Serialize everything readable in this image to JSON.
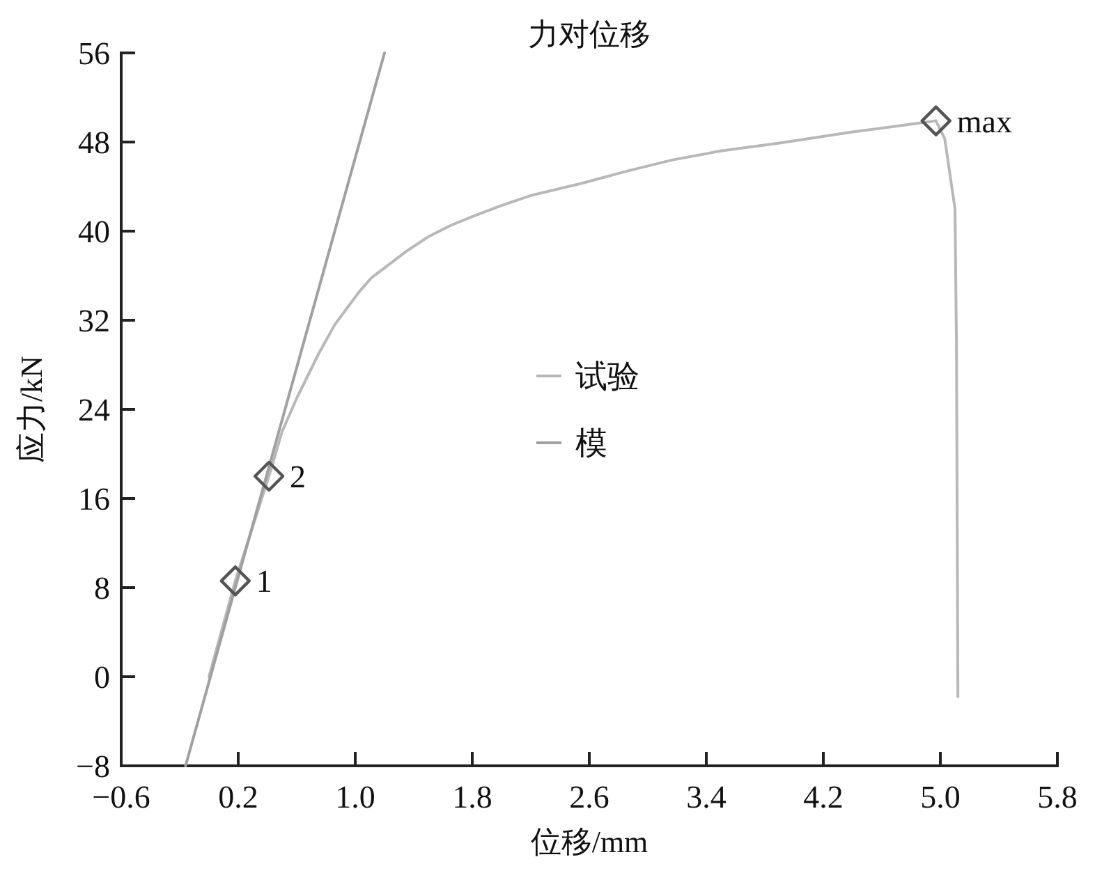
{
  "chart_data": {
    "type": "line",
    "title": "力对位移",
    "xlabel": "位移/mm",
    "ylabel": "应力/kN",
    "xlim": [
      -0.6,
      5.8
    ],
    "ylim": [
      -8,
      56
    ],
    "xticks": [
      {
        "value": -0.6,
        "label": "−0.6"
      },
      {
        "value": 0.2,
        "label": "0.2"
      },
      {
        "value": 1,
        "label": "1.0"
      },
      {
        "value": 1.8,
        "label": "1.8"
      },
      {
        "value": 2.6,
        "label": "2.6"
      },
      {
        "value": 3.4,
        "label": "3.4"
      },
      {
        "value": 4.2,
        "label": "4.2"
      },
      {
        "value": 5,
        "label": "5.0"
      },
      {
        "value": 5.8,
        "label": "5.8"
      }
    ],
    "yticks": [
      -8,
      0,
      8,
      16,
      24,
      32,
      40,
      48,
      56
    ],
    "legend": "center",
    "series": [
      {
        "name": "试验",
        "color": "#b8b8b8",
        "x": [
          0,
          0.18,
          0.41,
          0.5,
          0.6,
          0.75,
          0.86,
          0.95,
          1.03,
          1.11,
          1.2,
          1.27,
          1.35,
          1.5,
          1.65,
          1.8,
          2.0,
          2.2,
          2.55,
          2.86,
          3.17,
          3.5,
          3.9,
          4.4,
          4.97,
          5.03,
          5.1,
          5.11,
          5.12
        ],
        "values": [
          0,
          8.6,
          18,
          22,
          25,
          29,
          31.6,
          33.2,
          34.6,
          35.8,
          36.7,
          37.4,
          38.2,
          39.5,
          40.5,
          41.3,
          42.3,
          43.2,
          44.3,
          45.4,
          46.4,
          47.2,
          47.9,
          48.9,
          49.9,
          48.3,
          42,
          30,
          -1.8
        ]
      },
      {
        "name": "模",
        "color": "#a0a0a0",
        "x": [
          -0.16,
          1.2
        ],
        "values": [
          -8,
          56
        ]
      },
      {
        "type": "scatter",
        "marker": "diamond",
        "color": "#555555",
        "x": [
          0.18,
          0.41,
          4.97
        ],
        "values": [
          8.6,
          18,
          49.9
        ]
      }
    ],
    "annotations": [
      {
        "text": "1",
        "x": 0.18,
        "y": 8.6
      },
      {
        "text": "2",
        "x": 0.41,
        "y": 18
      },
      {
        "text": "max",
        "x": 4.97,
        "y": 49.9
      }
    ]
  }
}
